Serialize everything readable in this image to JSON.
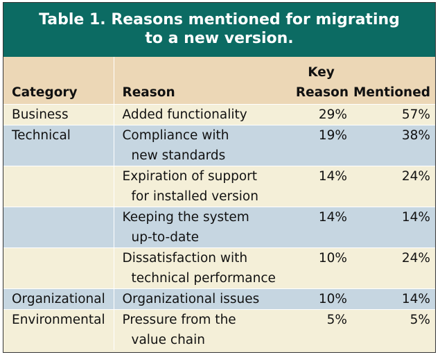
{
  "table": {
    "title_line1": "Table 1.  Reasons mentioned for migrating",
    "title_line2": "to a new version.",
    "headers": {
      "category": "Category",
      "reason": "Reason",
      "key_line1": "Key",
      "key_line2": "Reason",
      "mentioned": "Mentioned"
    },
    "rows": [
      {
        "category": "Business",
        "reason_l1": "Added functionality",
        "reason_l2": "",
        "key": "29%",
        "mentioned": "57%",
        "color": "#f4efd8"
      },
      {
        "category": "Technical",
        "reason_l1": "Compliance with",
        "reason_l2": "new standards",
        "key": "19%",
        "mentioned": "38%",
        "color": "#c6d6e1"
      },
      {
        "category": "",
        "reason_l1": "Expiration of support",
        "reason_l2": "for installed version",
        "key": "14%",
        "mentioned": "24%",
        "color": "#f4efd8"
      },
      {
        "category": "",
        "reason_l1": "Keeping the system",
        "reason_l2": "up-to-date",
        "key": "14%",
        "mentioned": "14%",
        "color": "#c6d6e1"
      },
      {
        "category": "",
        "reason_l1": "Dissatisfaction with",
        "reason_l2": "technical performance",
        "key": "10%",
        "mentioned": "24%",
        "color": "#f4efd8"
      },
      {
        "category": "Organizational",
        "reason_l1": "Organizational issues",
        "reason_l2": "",
        "key": "10%",
        "mentioned": "14%",
        "color": "#c6d6e1"
      },
      {
        "category": "Environmental",
        "reason_l1": "Pressure from the",
        "reason_l2": "value chain",
        "key": "5%",
        "mentioned": "5%",
        "color": "#f4efd8"
      }
    ]
  },
  "colors": {
    "title_background": "#0c6b63",
    "header_background": "#ecd7b6",
    "stripe_cream": "#f4efd8",
    "stripe_blue": "#c6d6e1"
  }
}
